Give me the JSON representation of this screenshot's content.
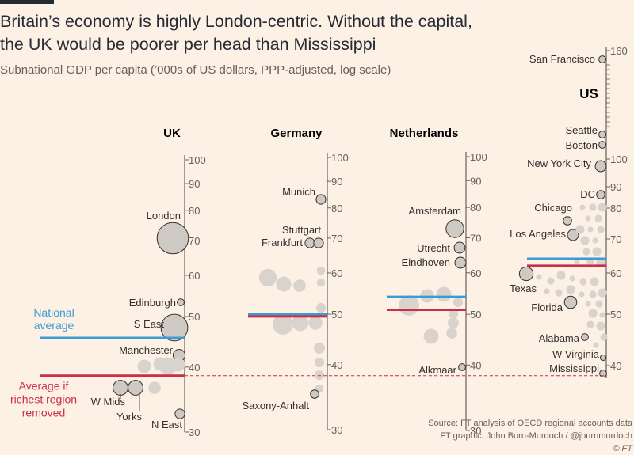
{
  "title_line1": "Britain’s economy is highly London-centric. Without the capital,",
  "title_line2": "the UK would be poorer per head than Mississippi",
  "subtitle": "Subnational GDP per capita (’000s of US dollars, PPP-adjusted, log scale)",
  "source_line1": "Source: FT analysis of OECD regional accounts data",
  "source_line2": "FT graphic: John Burn-Murdoch / @jburnmurdoch",
  "source_line3": "© FT",
  "colors": {
    "background": "#fdf1e6",
    "bubble": "#cfc9c4",
    "bubble_stroke": "#33302e",
    "national_average": "#3b9bd3",
    "richest_removed": "#cc2e45",
    "axis": "#66605c"
  },
  "legend": {
    "national_average_line1": "National",
    "national_average_line2": "average",
    "richest_removed_line1": "Average if",
    "richest_removed_line2": "richest region",
    "richest_removed_line3": "removed"
  },
  "chart_data": {
    "type": "scatter",
    "scale": "log",
    "unit": "’000s of US dollars, PPP-adjusted",
    "panels": [
      {
        "name": "UK",
        "ylim": [
          30,
          100
        ],
        "ticks": [
          30,
          40,
          50,
          60,
          70,
          80,
          90,
          100
        ],
        "national_average": 45.5,
        "average_richest_removed": 38.5,
        "points": [
          {
            "label": "London",
            "value": 71,
            "size": 13
          },
          {
            "label": "Edinburgh",
            "value": 53,
            "size": 4
          },
          {
            "label": "S East",
            "value": 48,
            "size": 11
          },
          {
            "label": "Manchester",
            "value": 42,
            "size": 7
          },
          {
            "label": "",
            "value": 41,
            "size": 8
          },
          {
            "label": "",
            "value": 40,
            "size": 8
          },
          {
            "label": "",
            "value": 39.5,
            "size": 10
          },
          {
            "label": "",
            "value": 39,
            "size": 8
          },
          {
            "label": "W Mids",
            "value": 36,
            "size": 9
          },
          {
            "label": "Yorks",
            "value": 36,
            "size": 9
          },
          {
            "label": "",
            "value": 36,
            "size": 8
          },
          {
            "label": "N East",
            "value": 33,
            "size": 6
          }
        ]
      },
      {
        "name": "Germany",
        "ylim": [
          30,
          100
        ],
        "ticks": [
          30,
          40,
          50,
          60,
          70,
          80,
          90,
          100
        ],
        "national_average": 50,
        "average_richest_removed": 49.5,
        "points": [
          {
            "label": "Munich",
            "value": 84,
            "size": 6
          },
          {
            "label": "Stuttgart",
            "value": 69,
            "size": 6
          },
          {
            "label": "Frankfurt",
            "value": 69,
            "size": 6
          },
          {
            "label": "",
            "value": 59,
            "size": 12
          },
          {
            "label": "",
            "value": 58,
            "size": 10
          },
          {
            "label": "",
            "value": 57,
            "size": 8
          },
          {
            "label": "",
            "value": 61,
            "size": 5
          },
          {
            "label": "",
            "value": 58,
            "size": 5
          },
          {
            "label": "",
            "value": 52,
            "size": 6
          },
          {
            "label": "",
            "value": 48,
            "size": 14
          },
          {
            "label": "",
            "value": 48,
            "size": 11
          },
          {
            "label": "",
            "value": 47,
            "size": 9
          },
          {
            "label": "",
            "value": 44,
            "size": 7
          },
          {
            "label": "",
            "value": 42,
            "size": 6
          },
          {
            "label": "",
            "value": 40,
            "size": 6
          },
          {
            "label": "",
            "value": 36,
            "size": 5
          },
          {
            "label": "Saxony-Anhalt",
            "value": 35,
            "size": 5
          }
        ]
      },
      {
        "name": "Netherlands",
        "ylim": [
          30,
          100
        ],
        "ticks": [
          30,
          40,
          50,
          60,
          70,
          80,
          90,
          100
        ],
        "national_average": 54,
        "average_richest_removed": 51,
        "points": [
          {
            "label": "Amsterdam",
            "value": 73,
            "size": 12
          },
          {
            "label": "Utrecht",
            "value": 67,
            "size": 7
          },
          {
            "label": "Eindhoven",
            "value": 63,
            "size": 7
          },
          {
            "label": "",
            "value": 54.5,
            "size": 10
          },
          {
            "label": "",
            "value": 54,
            "size": 9
          },
          {
            "label": "",
            "value": 52,
            "size": 14
          },
          {
            "label": "",
            "value": 53,
            "size": 6
          },
          {
            "label": "",
            "value": 50,
            "size": 6
          },
          {
            "label": "",
            "value": 48,
            "size": 7
          },
          {
            "label": "",
            "value": 46,
            "size": 7
          },
          {
            "label": "",
            "value": 45,
            "size": 10
          },
          {
            "label": "Alkmaar",
            "value": 39,
            "size": 4
          }
        ]
      },
      {
        "name": "US",
        "ylim": [
          38,
          160
        ],
        "ticks": [
          40,
          50,
          60,
          70,
          80,
          90,
          100,
          160
        ],
        "national_average": 64,
        "average_richest_removed": 62,
        "points": [
          {
            "label": "San Francisco",
            "value": 160,
            "size": 4
          },
          {
            "label": "Seattle",
            "value": 107,
            "size": 4
          },
          {
            "label": "Boston",
            "value": 104,
            "size": 4
          },
          {
            "label": "New York City",
            "value": 97,
            "size": 7
          },
          {
            "label": "DC",
            "value": 87,
            "size": 5
          },
          {
            "label": "Chicago",
            "value": 76,
            "size": 5
          },
          {
            "label": "Los Angeles",
            "value": 71,
            "size": 7
          },
          {
            "label": "Texas",
            "value": 61,
            "size": 9
          },
          {
            "label": "Florida",
            "value": 53,
            "size": 8
          },
          {
            "label": "Alabama",
            "value": 45,
            "size": 4
          },
          {
            "label": "W Virginia",
            "value": 42,
            "size": 3
          },
          {
            "label": "Mississippi",
            "value": 38.5,
            "size": 4
          }
        ]
      }
    ]
  }
}
